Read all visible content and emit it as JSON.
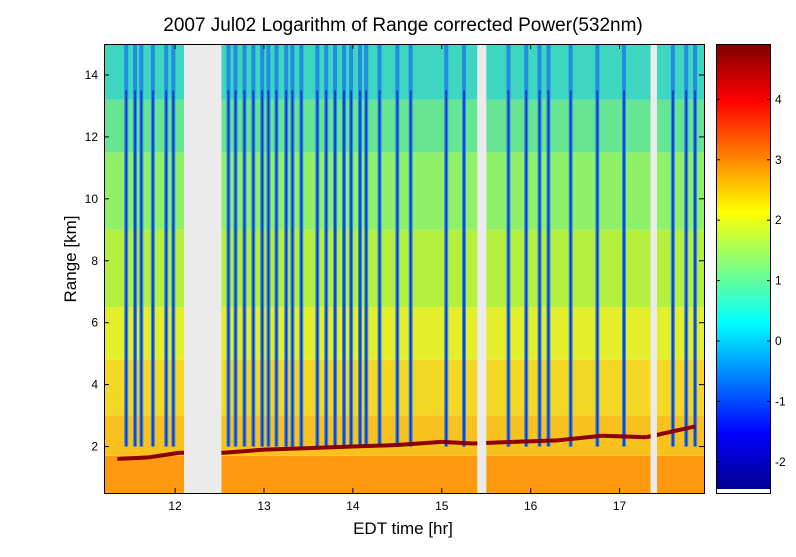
{
  "chart_data": {
    "type": "heatmap",
    "title": "2007 Jul02  Logarithm of Range corrected Power(532nm)",
    "xlabel": "EDT time [hr]",
    "ylabel": "Range [km]",
    "xlim": [
      11.2,
      17.95
    ],
    "ylim": [
      0.5,
      15
    ],
    "x_ticks": [
      12,
      13,
      14,
      15,
      16,
      17
    ],
    "y_ticks": [
      2,
      4,
      6,
      8,
      10,
      12,
      14
    ],
    "colorbar": {
      "colormap": "jet",
      "clim": [
        -2.45,
        4.9
      ],
      "ticks": [
        -2,
        -1,
        0,
        1,
        2,
        3,
        4
      ]
    },
    "data_gaps": [
      [
        12.1,
        12.52
      ],
      [
        15.4,
        15.5
      ],
      [
        17.35,
        17.42
      ]
    ],
    "boundary_layer_top_km": [
      {
        "t": 11.35,
        "h": 1.6
      },
      {
        "t": 11.7,
        "h": 1.65
      },
      {
        "t": 12.05,
        "h": 1.8
      },
      {
        "t": 12.55,
        "h": 1.8
      },
      {
        "t": 13.0,
        "h": 1.9
      },
      {
        "t": 13.5,
        "h": 1.95
      },
      {
        "t": 14.0,
        "h": 2.0
      },
      {
        "t": 14.5,
        "h": 2.05
      },
      {
        "t": 15.0,
        "h": 2.15
      },
      {
        "t": 15.35,
        "h": 2.1
      },
      {
        "t": 15.8,
        "h": 2.15
      },
      {
        "t": 16.3,
        "h": 2.2
      },
      {
        "t": 16.8,
        "h": 2.35
      },
      {
        "t": 17.3,
        "h": 2.3
      },
      {
        "t": 17.85,
        "h": 2.65
      }
    ],
    "cloud_columns_hr": [
      11.45,
      11.55,
      11.62,
      11.75,
      11.9,
      11.98,
      12.6,
      12.68,
      12.78,
      12.88,
      12.98,
      13.05,
      13.14,
      13.25,
      13.32,
      13.42,
      13.6,
      13.7,
      13.8,
      13.9,
      13.98,
      14.08,
      14.15,
      14.3,
      14.5,
      14.65,
      15.05,
      15.25,
      15.75,
      15.95,
      16.1,
      16.2,
      16.45,
      16.75,
      17.05,
      17.6,
      17.75,
      17.85
    ]
  }
}
